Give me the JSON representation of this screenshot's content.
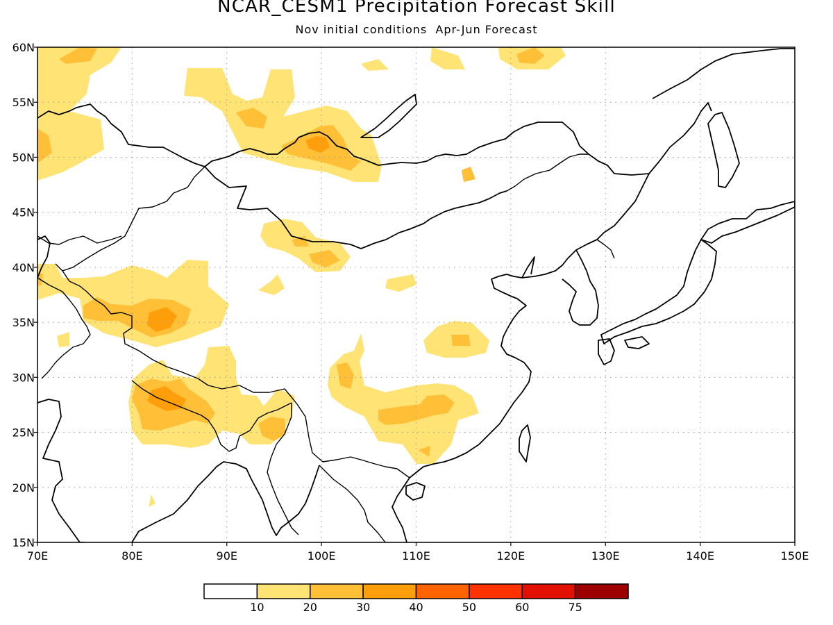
{
  "title": "NCAR_CESM1 Precipitation Forecast Skill",
  "subtitle": "Nov initial conditions  Apr-Jun Forecast",
  "map": {
    "lon_range": [
      70,
      150
    ],
    "lat_range": [
      15,
      60
    ],
    "lon_ticks": [
      "70E",
      "80E",
      "90E",
      "100E",
      "110E",
      "120E",
      "130E",
      "140E",
      "150E"
    ],
    "lat_ticks": [
      "15N",
      "20N",
      "25N",
      "30N",
      "35N",
      "40N",
      "45N",
      "50N",
      "55N",
      "60N"
    ],
    "gridlines": "dotted"
  },
  "colorbar": {
    "labels": [
      "10",
      "20",
      "30",
      "40",
      "50",
      "60",
      "75"
    ],
    "colors": [
      "#ffffff",
      "#ffe375",
      "#ffc038",
      "#ff9e0b",
      "#ff6400",
      "#ff3200",
      "#e31000",
      "#9c0000"
    ]
  },
  "skill_colors": {
    "c1": "#ffe375",
    "c2": "#ffc038",
    "c3": "#ff9e0b"
  }
}
